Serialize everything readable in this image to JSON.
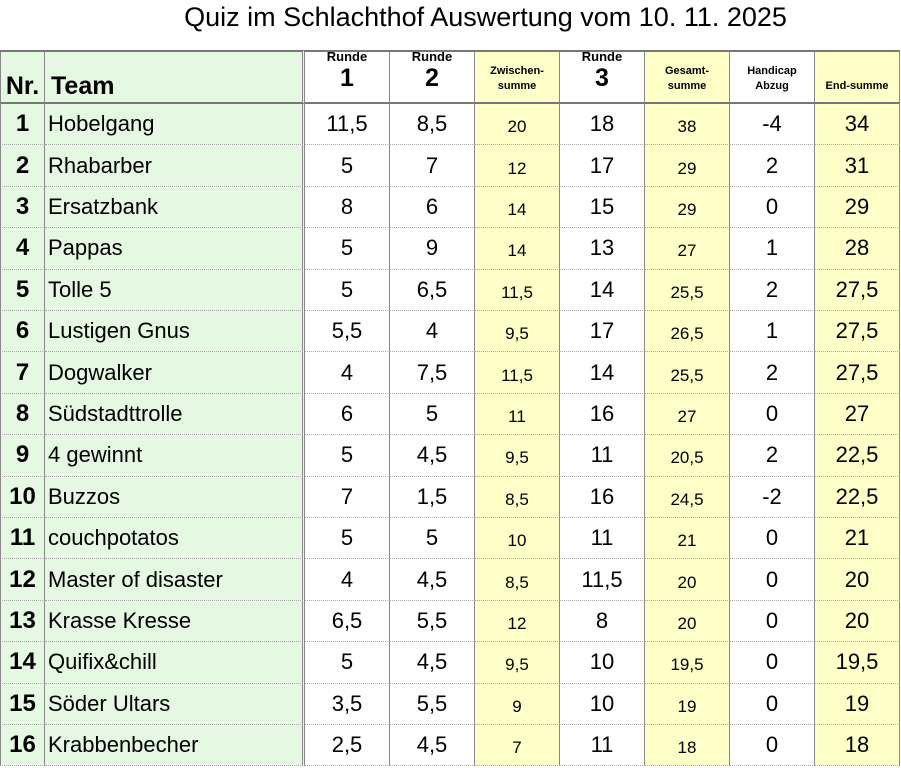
{
  "title": "Quiz im Schlachthof Auswertung vom 10. 11. 2025",
  "table": {
    "header": [
      [
        "Nr."
      ],
      [
        "Team"
      ],
      [
        "Runde",
        "1"
      ],
      [
        "Runde",
        "2"
      ],
      [
        "Zwischen-",
        "summe"
      ],
      [
        "Runde",
        "3"
      ],
      [
        "Gesamt-",
        "summe"
      ],
      [
        "Handicap",
        "Abzug"
      ],
      [
        "End-summe"
      ]
    ],
    "rows": [
      [
        "1",
        "Hobelgang",
        "11,5",
        "8,5",
        "20",
        "18",
        "38",
        "-4",
        "34"
      ],
      [
        "2",
        "Rhabarber",
        "5",
        "7",
        "12",
        "17",
        "29",
        "2",
        "31"
      ],
      [
        "3",
        "Ersatzbank",
        "8",
        "6",
        "14",
        "15",
        "29",
        "0",
        "29"
      ],
      [
        "4",
        "Pappas",
        "5",
        "9",
        "14",
        "13",
        "27",
        "1",
        "28"
      ],
      [
        "5",
        "Tolle 5",
        "5",
        "6,5",
        "11,5",
        "14",
        "25,5",
        "2",
        "27,5"
      ],
      [
        "6",
        "Lustigen Gnus",
        "5,5",
        "4",
        "9,5",
        "17",
        "26,5",
        "1",
        "27,5"
      ],
      [
        "7",
        "Dogwalker",
        "4",
        "7,5",
        "11,5",
        "14",
        "25,5",
        "2",
        "27,5"
      ],
      [
        "8",
        "Südstadttrolle",
        "6",
        "5",
        "11",
        "16",
        "27",
        "0",
        "27"
      ],
      [
        "9",
        "4 gewinnt",
        "5",
        "4,5",
        "9,5",
        "11",
        "20,5",
        "2",
        "22,5"
      ],
      [
        "10",
        "Buzzos",
        "7",
        "1,5",
        "8,5",
        "16",
        "24,5",
        "-2",
        "22,5"
      ],
      [
        "11",
        "couchpotatos",
        "5",
        "5",
        "10",
        "11",
        "21",
        "0",
        "21"
      ],
      [
        "12",
        "Master of disaster",
        "4",
        "4,5",
        "8,5",
        "11,5",
        "20",
        "0",
        "20"
      ],
      [
        "13",
        "Krasse Kresse",
        "6,5",
        "5,5",
        "12",
        "8",
        "20",
        "0",
        "20"
      ],
      [
        "14",
        "Quifix&chill",
        "5",
        "4,5",
        "9,5",
        "10",
        "19,5",
        "0",
        "19,5"
      ],
      [
        "15",
        "Söder Ultars",
        "3,5",
        "5,5",
        "9",
        "10",
        "19",
        "0",
        "19"
      ],
      [
        "16",
        "Krabbenbecher",
        "2,5",
        "4,5",
        "7",
        "11",
        "18",
        "0",
        "18"
      ]
    ]
  }
}
